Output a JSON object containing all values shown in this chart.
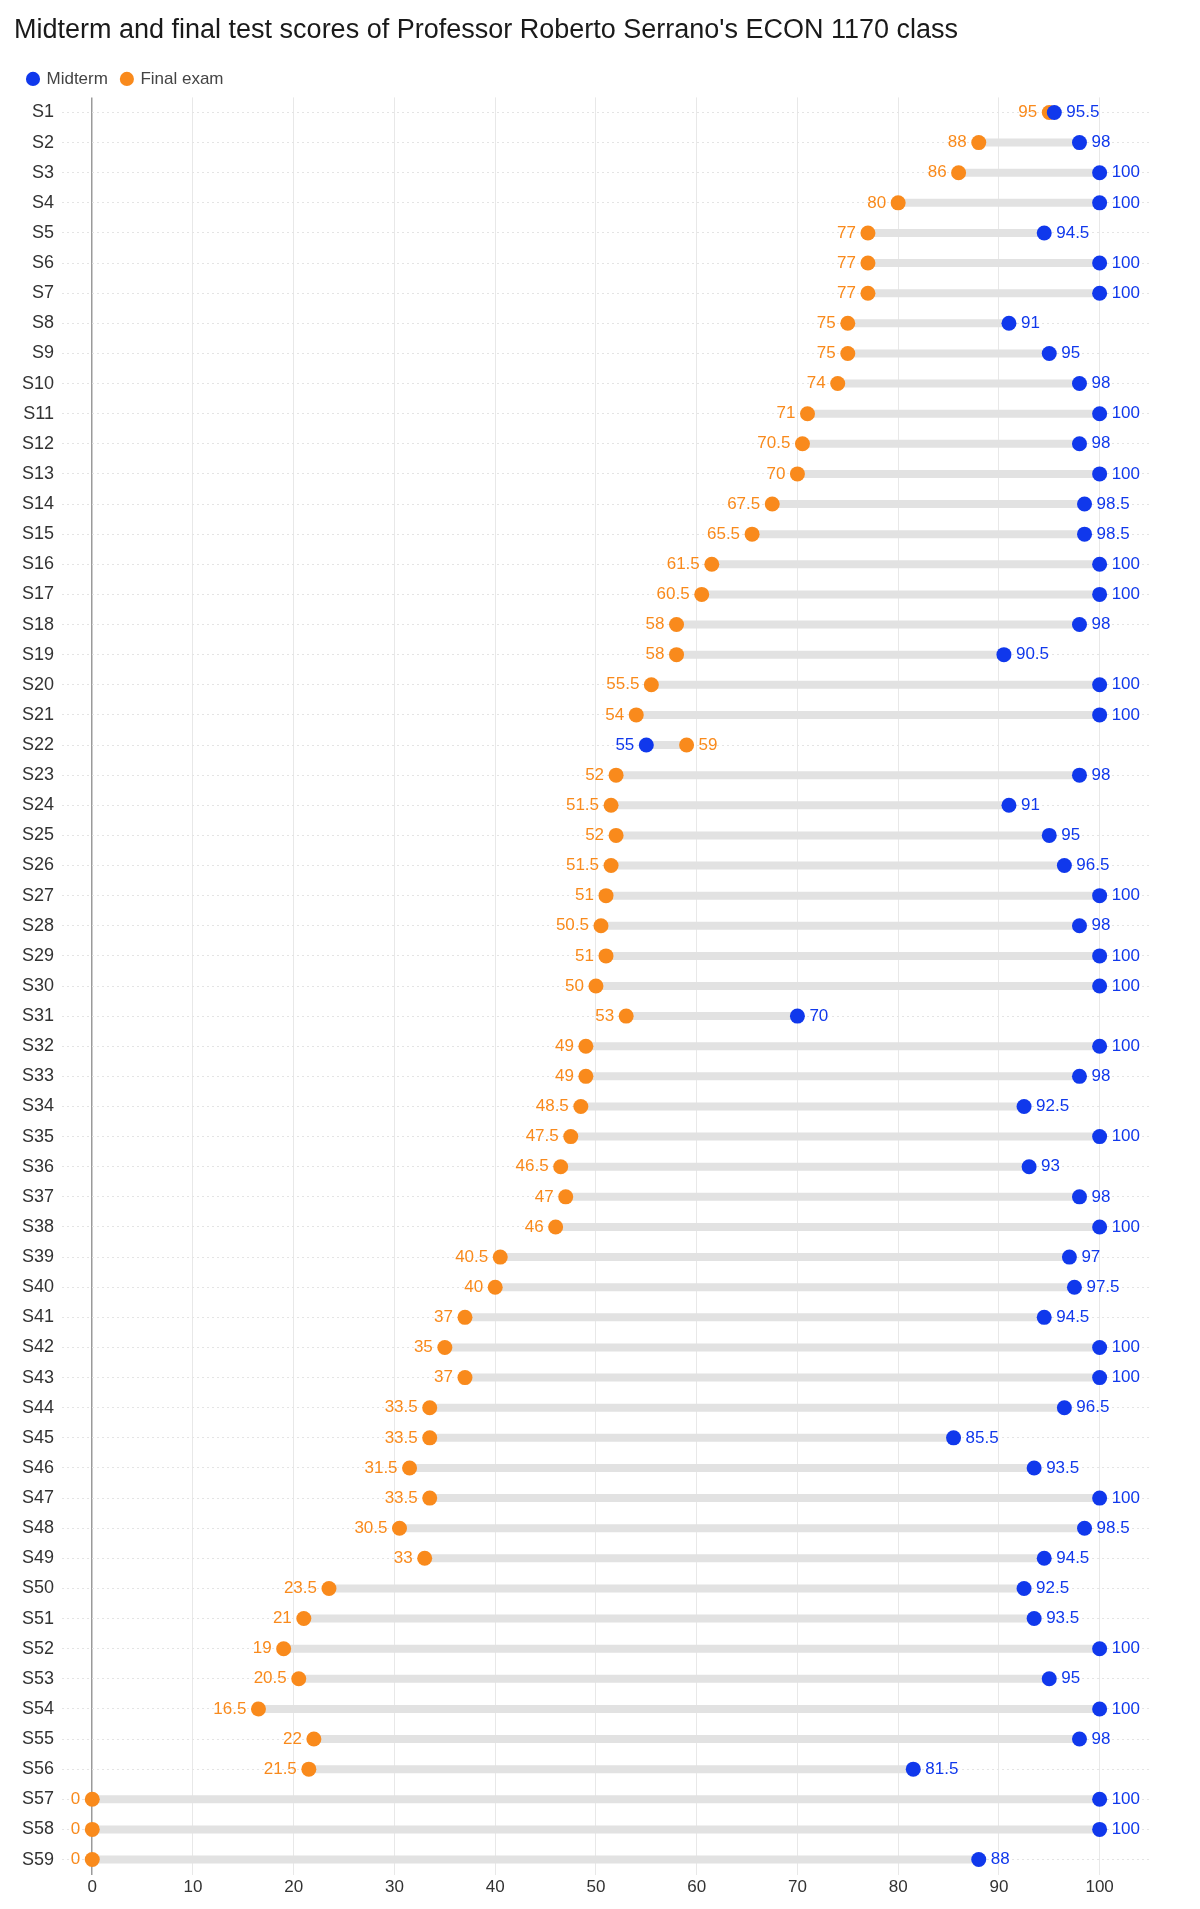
{
  "chart_data": {
    "type": "scatter",
    "orientation": "horizontal",
    "title": "Midterm and final test scores of Professor Roberto Serrano's ECON 1170 class",
    "categories": [
      "S1",
      "S2",
      "S3",
      "S4",
      "S5",
      "S6",
      "S7",
      "S8",
      "S9",
      "S10",
      "S11",
      "S12",
      "S13",
      "S14",
      "S15",
      "S16",
      "S17",
      "S18",
      "S19",
      "S20",
      "S21",
      "S22",
      "S23",
      "S24",
      "S25",
      "S26",
      "S27",
      "S28",
      "S29",
      "S30",
      "S31",
      "S32",
      "S33",
      "S34",
      "S35",
      "S36",
      "S37",
      "S38",
      "S39",
      "S40",
      "S41",
      "S42",
      "S43",
      "S44",
      "S45",
      "S46",
      "S47",
      "S48",
      "S49",
      "S50",
      "S51",
      "S52",
      "S53",
      "S54",
      "S55",
      "S56",
      "S57",
      "S58",
      "S59"
    ],
    "series": [
      {
        "name": "Midterm",
        "color": "#1038ec",
        "values": [
          95.5,
          98,
          100,
          100,
          94.5,
          100,
          100,
          91,
          95,
          98,
          100,
          98,
          100,
          98.5,
          98.5,
          100,
          100,
          98,
          90.5,
          100,
          100,
          55,
          98,
          91,
          95,
          96.5,
          100,
          98,
          100,
          100,
          70,
          100,
          98,
          92.5,
          100,
          93,
          98,
          100,
          97,
          97.5,
          94.5,
          100,
          100,
          96.5,
          85.5,
          93.5,
          100,
          98.5,
          94.5,
          92.5,
          93.5,
          100,
          95,
          100,
          98,
          81.5,
          100,
          100,
          88
        ]
      },
      {
        "name": "Final exam",
        "color": "#f98a1c",
        "values": [
          95,
          88,
          86,
          80,
          77,
          77,
          77,
          75,
          75,
          74,
          71,
          70.5,
          70,
          67.5,
          65.5,
          61.5,
          60.5,
          58,
          58,
          55.5,
          54,
          59,
          52,
          51.5,
          52,
          51.5,
          51,
          50.5,
          51,
          50,
          53,
          49,
          49,
          48.5,
          47.5,
          46.5,
          47,
          46,
          40.5,
          40,
          37,
          35,
          37,
          33.5,
          33.5,
          31.5,
          33.5,
          30.5,
          33,
          23.5,
          21,
          19,
          20.5,
          16.5,
          22,
          21.5,
          0,
          0,
          0
        ]
      }
    ],
    "xlim": [
      -3,
      105
    ],
    "xticks": [
      0,
      10,
      20,
      30,
      40,
      50,
      60,
      70,
      80,
      90,
      100
    ],
    "grid": true,
    "legend": "top left",
    "marker": "circle",
    "data_labels": true
  }
}
